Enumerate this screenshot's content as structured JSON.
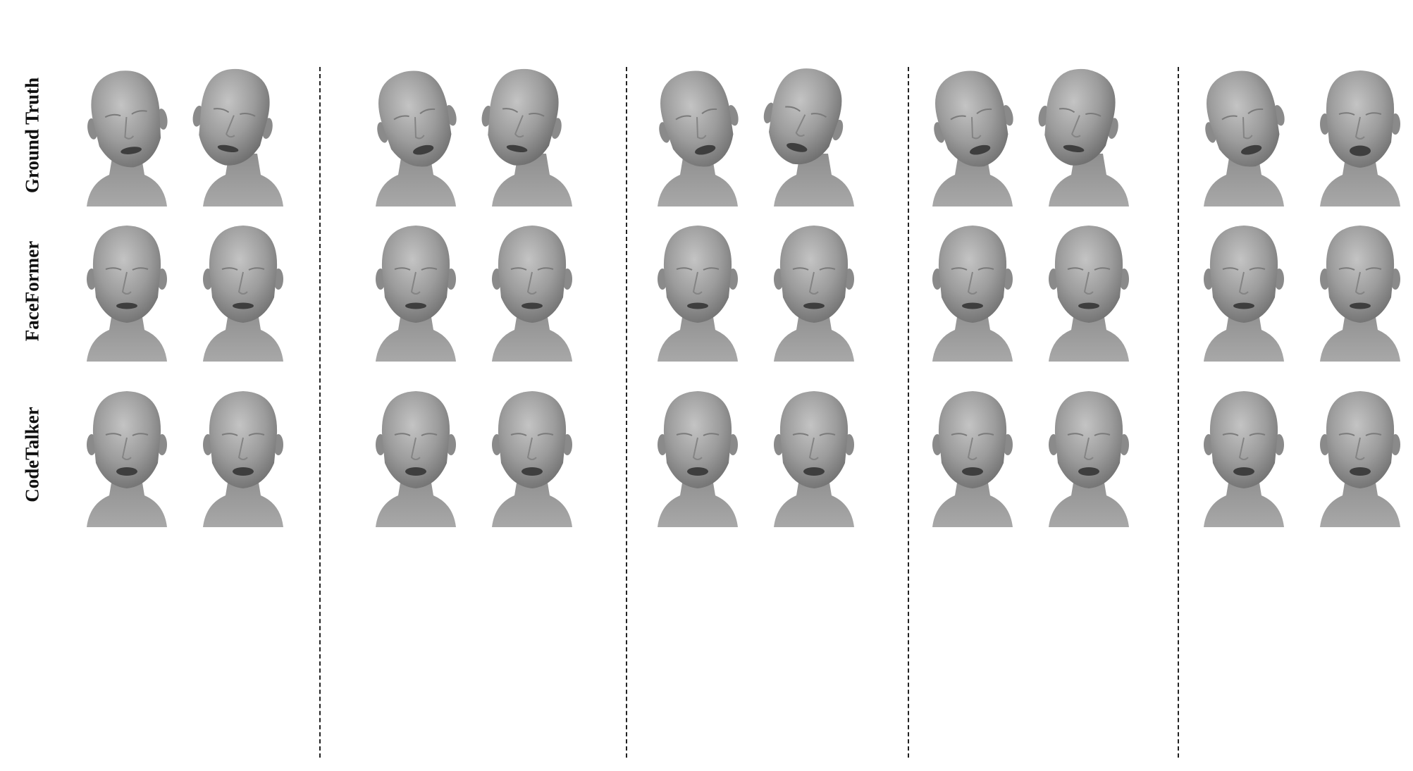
{
  "figure": {
    "row_labels": [
      "Ground Truth",
      "FaceFormer",
      "CodeTalker"
    ],
    "groups": 5,
    "faces_per_group": 2,
    "ground_truth_poses": [
      [
        "frontal-tilt",
        "left-turn"
      ],
      [
        "tilt-up",
        "left-turn"
      ],
      [
        "tilt-up",
        "left-turn-tilt"
      ],
      [
        "tilt-up",
        "left-turn"
      ],
      [
        "tilt-up",
        "frontal-open-mouth"
      ]
    ],
    "mesh_color": "#9a9a9a",
    "divider_style": "dashed"
  }
}
